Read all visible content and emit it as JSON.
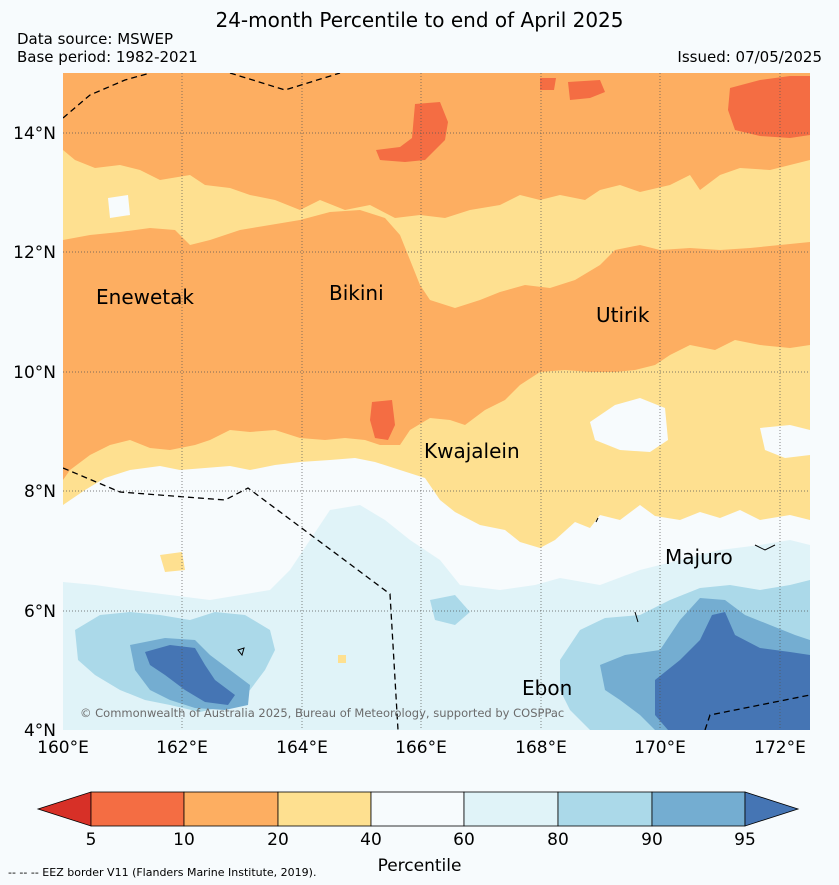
{
  "header": {
    "title": "24-month Percentile to end of April 2025",
    "data_source": "Data source: MSWEP",
    "base_period": "Base period: 1982-2021",
    "issued": "Issued: 07/05/2025"
  },
  "map": {
    "lon_labels": [
      "160°E",
      "162°E",
      "164°E",
      "166°E",
      "168°E",
      "170°E",
      "172°E"
    ],
    "lat_labels": [
      "14°N",
      "12°N",
      "10°N",
      "8°N",
      "6°N",
      "4°N"
    ],
    "places": [
      "Enewetak",
      "Bikini",
      "Utirik",
      "Kwajalein",
      "Majuro",
      "Ebon"
    ],
    "copyright": "© Commonwealth of Australia 2025, Bureau of Meteorology, supported by COSPPac"
  },
  "colorbar": {
    "ticks": [
      "5",
      "10",
      "20",
      "40",
      "60",
      "80",
      "90",
      "95"
    ],
    "label": "Percentile",
    "colors": [
      "#d73027",
      "#f46d43",
      "#fdae61",
      "#fee090",
      "#f7fbfd",
      "#e0f3f8",
      "#abd9e9",
      "#74add1",
      "#4575b4"
    ]
  },
  "footer": {
    "legend": "-- -- -- EEZ border V11 (Flanders Marine Institute, 2019)."
  }
}
